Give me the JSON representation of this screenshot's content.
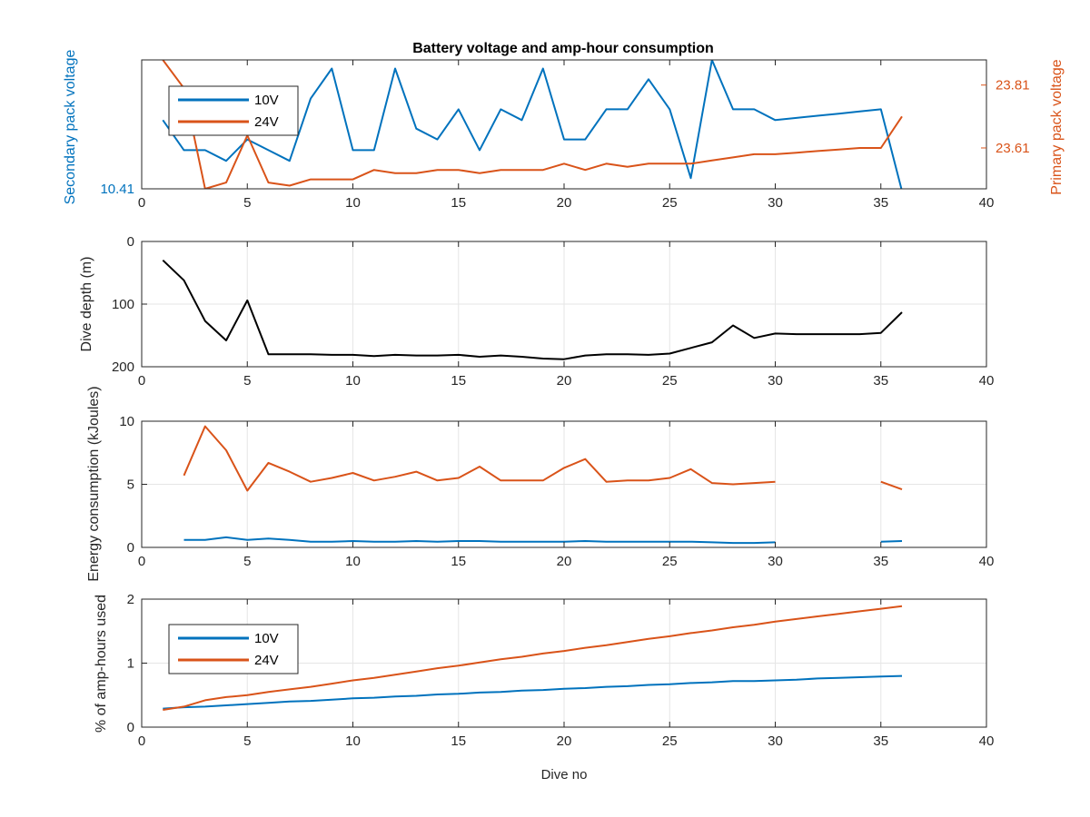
{
  "figure_title": "Battery voltage and amp-hour consumption",
  "colors": {
    "blue": "#0072BD",
    "orange": "#D95319",
    "black": "#000000",
    "grid": "#e6e6e6",
    "axis": "#262626"
  },
  "chart_data": [
    {
      "type": "line",
      "title": "Battery voltage and amp-hour consumption",
      "xlabel": "",
      "ylabel_left": "Secondary pack voltage",
      "ylabel_right": "Primary pack voltage",
      "xlim": [
        0,
        40
      ],
      "xticks": [
        0,
        5,
        10,
        15,
        20,
        25,
        30,
        35,
        40
      ],
      "ylim_left": [
        10.41,
        10.47
      ],
      "yticks_left": [
        10.41
      ],
      "ylim_right": [
        23.48,
        23.89
      ],
      "yticks_right": [
        23.61,
        23.81
      ],
      "grid": false,
      "legend": "top-left",
      "x": [
        1,
        2,
        3,
        4,
        5,
        6,
        7,
        8,
        9,
        10,
        11,
        12,
        13,
        14,
        15,
        16,
        17,
        18,
        19,
        20,
        21,
        22,
        23,
        24,
        25,
        26,
        27,
        28,
        29,
        30,
        31,
        32,
        33,
        34,
        35,
        36
      ],
      "series": [
        {
          "name": "10V",
          "axis": "left",
          "color": "#0072BD",
          "values": [
            10.442,
            10.428,
            10.428,
            10.423,
            10.433,
            10.428,
            10.423,
            10.452,
            10.466,
            10.428,
            10.428,
            10.466,
            10.438,
            10.433,
            10.447,
            10.428,
            10.447,
            10.442,
            10.466,
            10.433,
            10.433,
            10.447,
            10.447,
            10.461,
            10.447,
            10.415,
            10.47,
            10.447,
            10.447,
            10.442,
            10.443,
            10.444,
            10.445,
            10.446,
            10.447,
            10.409
          ]
        },
        {
          "name": "24V",
          "axis": "right",
          "color": "#D95319",
          "values": [
            23.89,
            23.8,
            23.48,
            23.5,
            23.65,
            23.5,
            23.49,
            23.51,
            23.51,
            23.51,
            23.54,
            23.53,
            23.53,
            23.54,
            23.54,
            23.53,
            23.54,
            23.54,
            23.54,
            23.56,
            23.54,
            23.56,
            23.55,
            23.56,
            23.56,
            23.56,
            23.57,
            23.58,
            23.59,
            23.59,
            23.595,
            23.6,
            23.605,
            23.61,
            23.61,
            23.71
          ]
        }
      ]
    },
    {
      "type": "line",
      "xlabel": "",
      "ylabel": "Dive depth (m)",
      "xlim": [
        0,
        40
      ],
      "xticks": [
        0,
        5,
        10,
        15,
        20,
        25,
        30,
        35,
        40
      ],
      "ylim": [
        0,
        200
      ],
      "yticks": [
        0,
        100,
        200
      ],
      "y_reversed": true,
      "grid": true,
      "x": [
        1,
        2,
        3,
        4,
        5,
        6,
        7,
        8,
        9,
        10,
        11,
        12,
        13,
        14,
        15,
        16,
        17,
        18,
        19,
        20,
        21,
        22,
        23,
        24,
        25,
        26,
        27,
        28,
        29,
        30,
        31,
        32,
        33,
        34,
        35,
        36
      ],
      "series": [
        {
          "color": "#000000",
          "values": [
            30,
            62,
            127,
            158,
            94,
            180,
            180,
            180,
            181,
            181,
            183,
            181,
            182,
            182,
            181,
            184,
            182,
            184,
            187,
            188,
            182,
            180,
            180,
            181,
            179,
            170,
            161,
            134,
            154,
            147,
            148,
            148,
            148,
            148,
            146,
            113
          ]
        }
      ]
    },
    {
      "type": "line",
      "xlabel": "",
      "ylabel": "Energy consumption (kJoules)",
      "xlim": [
        0,
        40
      ],
      "xticks": [
        0,
        5,
        10,
        15,
        20,
        25,
        30,
        35,
        40
      ],
      "ylim": [
        0,
        10
      ],
      "yticks": [
        0,
        5,
        10
      ],
      "grid": true,
      "x": [
        2,
        3,
        4,
        5,
        6,
        7,
        8,
        9,
        10,
        11,
        12,
        13,
        14,
        15,
        16,
        17,
        18,
        19,
        20,
        21,
        22,
        23,
        24,
        25,
        26,
        27,
        28,
        29,
        30,
        31,
        32,
        33,
        34,
        35,
        36
      ],
      "series": [
        {
          "color": "#D95319",
          "values": [
            5.7,
            9.6,
            7.7,
            4.5,
            6.7,
            6.0,
            5.2,
            5.5,
            5.9,
            5.3,
            5.6,
            6.0,
            5.3,
            5.5,
            6.4,
            5.3,
            5.3,
            5.3,
            6.3,
            7.0,
            5.2,
            5.3,
            5.3,
            5.5,
            6.2,
            5.1,
            5.0,
            5.1,
            5.2,
            null,
            null,
            null,
            null,
            5.2,
            4.6
          ]
        },
        {
          "color": "#0072BD",
          "values": [
            0.6,
            0.6,
            0.8,
            0.6,
            0.7,
            0.6,
            0.45,
            0.45,
            0.5,
            0.45,
            0.45,
            0.5,
            0.45,
            0.5,
            0.5,
            0.45,
            0.45,
            0.45,
            0.45,
            0.5,
            0.45,
            0.45,
            0.45,
            0.45,
            0.45,
            0.4,
            0.35,
            0.35,
            0.4,
            null,
            null,
            null,
            null,
            0.45,
            0.5
          ]
        }
      ]
    },
    {
      "type": "line",
      "xlabel": "Dive no",
      "ylabel": "% of amp-hours used",
      "xlim": [
        0,
        40
      ],
      "xticks": [
        0,
        5,
        10,
        15,
        20,
        25,
        30,
        35,
        40
      ],
      "ylim": [
        0,
        2
      ],
      "yticks": [
        0,
        1,
        2
      ],
      "grid": true,
      "legend": "top-left",
      "x": [
        1,
        2,
        3,
        4,
        5,
        6,
        7,
        8,
        9,
        10,
        11,
        12,
        13,
        14,
        15,
        16,
        17,
        18,
        19,
        20,
        21,
        22,
        23,
        24,
        25,
        26,
        27,
        28,
        29,
        30,
        31,
        32,
        33,
        34,
        35,
        36
      ],
      "series": [
        {
          "name": "10V",
          "color": "#0072BD",
          "values": [
            0.29,
            0.31,
            0.32,
            0.34,
            0.36,
            0.38,
            0.4,
            0.41,
            0.43,
            0.45,
            0.46,
            0.48,
            0.49,
            0.51,
            0.52,
            0.54,
            0.55,
            0.57,
            0.58,
            0.6,
            0.61,
            0.63,
            0.64,
            0.66,
            0.67,
            0.69,
            0.7,
            0.72,
            0.72,
            0.73,
            0.74,
            0.76,
            0.77,
            0.78,
            0.79,
            0.8
          ]
        },
        {
          "name": "24V",
          "color": "#D95319",
          "values": [
            0.27,
            0.32,
            0.42,
            0.47,
            0.5,
            0.55,
            0.59,
            0.63,
            0.68,
            0.73,
            0.77,
            0.82,
            0.87,
            0.92,
            0.96,
            1.01,
            1.06,
            1.1,
            1.15,
            1.19,
            1.24,
            1.28,
            1.33,
            1.38,
            1.42,
            1.47,
            1.51,
            1.56,
            1.6,
            1.65,
            1.69,
            1.73,
            1.77,
            1.81,
            1.85,
            1.89
          ]
        }
      ]
    }
  ]
}
